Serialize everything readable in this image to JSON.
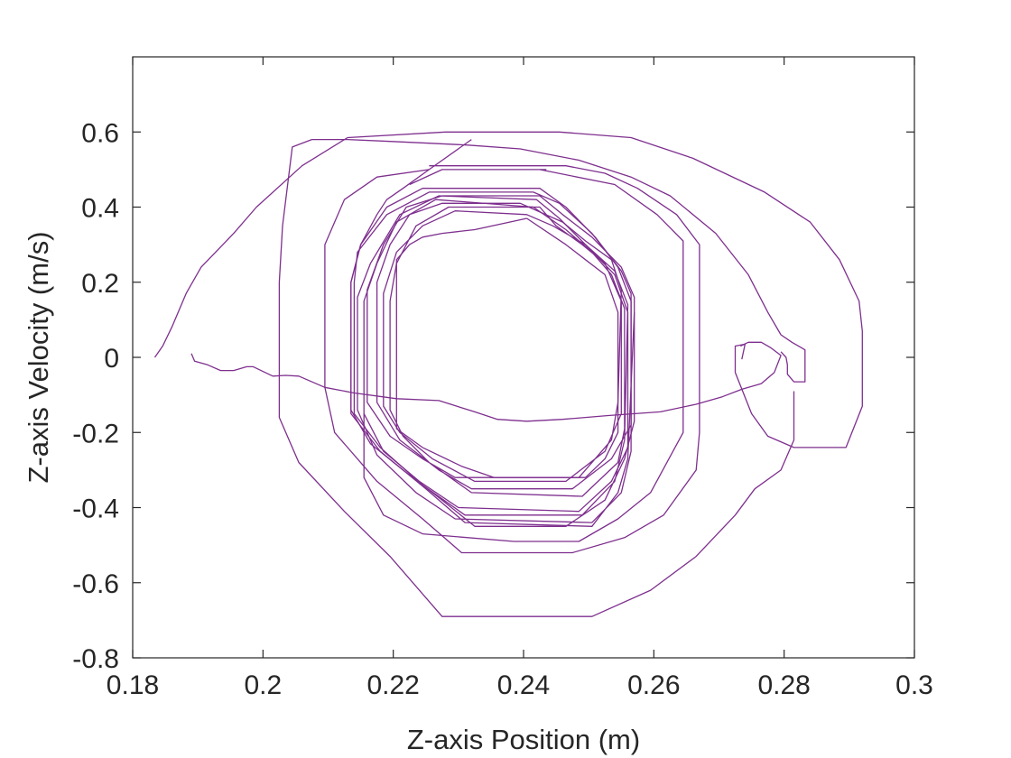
{
  "chart_data": {
    "type": "line",
    "title": "",
    "xlabel": "Z-axis Position (m)",
    "ylabel": "Z-axis Velocity (m/s)",
    "xlim": [
      0.18,
      0.3
    ],
    "ylim": [
      -0.8,
      0.8
    ],
    "x_ticks": [
      "0.18",
      "0.2",
      "0.22",
      "0.24",
      "0.26",
      "0.28",
      "0.3"
    ],
    "y_ticks": [
      "-0.8",
      "-0.6",
      "-0.4",
      "-0.2",
      "0",
      "0.2",
      "0.4",
      "0.6"
    ],
    "grid": false,
    "legend": "none",
    "series": [
      {
        "color": "#7E2F8E",
        "points": [
          [
            0.1834,
            0.0
          ],
          [
            0.1846,
            0.03
          ],
          [
            0.186,
            0.08
          ],
          [
            0.1882,
            0.17
          ],
          [
            0.1905,
            0.24
          ],
          [
            0.1955,
            0.33
          ],
          [
            0.199,
            0.4
          ],
          [
            0.206,
            0.51
          ],
          [
            0.213,
            0.585
          ],
          [
            0.228,
            0.6
          ],
          [
            0.2455,
            0.6
          ],
          [
            0.2565,
            0.585
          ],
          [
            0.266,
            0.53
          ],
          [
            0.277,
            0.44
          ],
          [
            0.284,
            0.36
          ],
          [
            0.2885,
            0.26
          ],
          [
            0.2915,
            0.15
          ],
          [
            0.292,
            0.07
          ],
          [
            0.292,
            -0.13
          ],
          [
            0.2895,
            -0.24
          ],
          [
            0.2815,
            -0.24
          ],
          [
            0.2775,
            -0.21
          ],
          [
            0.275,
            -0.15
          ],
          [
            0.2725,
            -0.04
          ],
          [
            0.2725,
            0.03
          ],
          [
            0.274,
            0.035
          ],
          [
            0.2735,
            -0.005
          ]
        ]
      },
      {
        "color": "#7E2F8E",
        "points": [
          [
            0.2733,
            0.03
          ],
          [
            0.2745,
            0.04
          ],
          [
            0.2765,
            0.04
          ],
          [
            0.278,
            0.025
          ],
          [
            0.2795,
            0.005
          ],
          [
            0.2785,
            -0.04
          ],
          [
            0.2765,
            -0.07
          ],
          [
            0.2735,
            -0.085
          ],
          [
            0.2705,
            -0.105
          ],
          [
            0.2665,
            -0.125
          ],
          [
            0.261,
            -0.145
          ],
          [
            0.253,
            -0.155
          ],
          [
            0.246,
            -0.165
          ],
          [
            0.2405,
            -0.17
          ],
          [
            0.236,
            -0.165
          ],
          [
            0.2325,
            -0.145
          ],
          [
            0.227,
            -0.115
          ],
          [
            0.2205,
            -0.11
          ],
          [
            0.214,
            -0.095
          ],
          [
            0.2095,
            -0.08
          ],
          [
            0.2055,
            -0.05
          ],
          [
            0.2035,
            -0.048
          ],
          [
            0.2015,
            -0.05
          ],
          [
            0.1985,
            -0.025
          ],
          [
            0.1975,
            -0.025
          ],
          [
            0.1955,
            -0.035
          ],
          [
            0.1935,
            -0.035
          ],
          [
            0.1915,
            -0.02
          ],
          [
            0.1895,
            -0.01
          ],
          [
            0.189,
            0.01
          ]
        ]
      },
      {
        "color": "#7E2F8E",
        "points": [
          [
            0.2795,
            0.015
          ],
          [
            0.2803,
            0.0
          ],
          [
            0.2805,
            -0.02
          ],
          [
            0.2805,
            -0.045
          ],
          [
            0.2815,
            -0.065
          ],
          [
            0.2832,
            -0.065
          ],
          [
            0.2832,
            0.02
          ],
          [
            0.2812,
            0.04
          ],
          [
            0.2795,
            0.06
          ],
          [
            0.2775,
            0.12
          ],
          [
            0.2745,
            0.22
          ],
          [
            0.2695,
            0.33
          ],
          [
            0.2625,
            0.43
          ],
          [
            0.2565,
            0.48
          ],
          [
            0.2485,
            0.525
          ],
          [
            0.2395,
            0.555
          ],
          [
            0.2315,
            0.565
          ],
          [
            0.2255,
            0.57
          ],
          [
            0.2195,
            0.575
          ],
          [
            0.213,
            0.58
          ],
          [
            0.2075,
            0.58
          ],
          [
            0.2045,
            0.56
          ],
          [
            0.203,
            0.35
          ],
          [
            0.2025,
            0.2
          ],
          [
            0.2025,
            -0.16
          ],
          [
            0.2055,
            -0.28
          ],
          [
            0.2125,
            -0.41
          ],
          [
            0.2195,
            -0.53
          ],
          [
            0.2275,
            -0.69
          ],
          [
            0.2505,
            -0.69
          ],
          [
            0.2595,
            -0.62
          ],
          [
            0.2665,
            -0.53
          ],
          [
            0.2725,
            -0.42
          ],
          [
            0.2755,
            -0.35
          ],
          [
            0.2795,
            -0.3
          ],
          [
            0.2815,
            -0.22
          ],
          [
            0.2815,
            -0.09
          ]
        ]
      },
      {
        "color": "#7E2F8E",
        "points": [
          [
            0.232,
            0.58
          ],
          [
            0.2255,
            0.5
          ],
          [
            0.2215,
            0.45
          ],
          [
            0.219,
            0.42
          ],
          [
            0.2175,
            0.38
          ],
          [
            0.215,
            0.3
          ],
          [
            0.2135,
            0.2
          ],
          [
            0.2135,
            -0.14
          ],
          [
            0.2165,
            -0.23
          ],
          [
            0.2215,
            -0.3
          ],
          [
            0.2275,
            -0.38
          ],
          [
            0.2325,
            -0.45
          ],
          [
            0.2465,
            -0.45
          ],
          [
            0.2525,
            -0.38
          ],
          [
            0.2555,
            -0.27
          ],
          [
            0.257,
            -0.17
          ],
          [
            0.257,
            0.16
          ],
          [
            0.255,
            0.24
          ],
          [
            0.2505,
            0.32
          ],
          [
            0.246,
            0.38
          ],
          [
            0.2425,
            0.43
          ],
          [
            0.2275,
            0.43
          ],
          [
            0.222,
            0.4
          ],
          [
            0.2185,
            0.3
          ],
          [
            0.216,
            0.18
          ],
          [
            0.216,
            -0.12
          ],
          [
            0.2195,
            -0.21
          ],
          [
            0.2245,
            -0.27
          ],
          [
            0.2295,
            -0.32
          ],
          [
            0.2485,
            -0.32
          ],
          [
            0.2535,
            -0.22
          ],
          [
            0.2545,
            -0.12
          ],
          [
            0.255,
            0.18
          ],
          [
            0.2535,
            0.26
          ],
          [
            0.2495,
            0.31
          ],
          [
            0.246,
            0.36
          ],
          [
            0.2395,
            0.41
          ],
          [
            0.2275,
            0.41
          ],
          [
            0.2225,
            0.38
          ],
          [
            0.2195,
            0.3
          ],
          [
            0.2175,
            0.2
          ],
          [
            0.2175,
            -0.12
          ],
          [
            0.221,
            -0.22
          ],
          [
            0.227,
            -0.3
          ],
          [
            0.232,
            -0.35
          ],
          [
            0.2475,
            -0.35
          ],
          [
            0.2535,
            -0.27
          ],
          [
            0.2565,
            -0.18
          ],
          [
            0.2565,
            0.15
          ],
          [
            0.2545,
            0.24
          ],
          [
            0.2505,
            0.33
          ],
          [
            0.2455,
            0.41
          ],
          [
            0.2415,
            0.44
          ],
          [
            0.2255,
            0.44
          ],
          [
            0.219,
            0.38
          ],
          [
            0.2145,
            0.28
          ],
          [
            0.214,
            0.2
          ],
          [
            0.214,
            -0.15
          ],
          [
            0.218,
            -0.24
          ],
          [
            0.2245,
            -0.34
          ],
          [
            0.231,
            -0.42
          ],
          [
            0.249,
            -0.42
          ],
          [
            0.254,
            -0.33
          ],
          [
            0.2555,
            -0.22
          ],
          [
            0.256,
            0.14
          ],
          [
            0.254,
            0.23
          ],
          [
            0.2495,
            0.3
          ],
          [
            0.2445,
            0.35
          ],
          [
            0.2405,
            0.38
          ],
          [
            0.2295,
            0.39
          ],
          [
            0.2245,
            0.35
          ],
          [
            0.2205,
            0.28
          ],
          [
            0.2185,
            0.17
          ],
          [
            0.2185,
            -0.13
          ],
          [
            0.221,
            -0.2
          ],
          [
            0.226,
            -0.27
          ],
          [
            0.2325,
            -0.33
          ],
          [
            0.2465,
            -0.33
          ],
          [
            0.2525,
            -0.25
          ],
          [
            0.255,
            -0.15
          ],
          [
            0.255,
            0.15
          ],
          [
            0.2525,
            0.25
          ],
          [
            0.249,
            0.3
          ],
          [
            0.245,
            0.35
          ],
          [
            0.2425,
            0.4
          ],
          [
            0.2285,
            0.4
          ],
          [
            0.2235,
            0.35
          ],
          [
            0.2205,
            0.25
          ],
          [
            0.2195,
            0.15
          ],
          [
            0.2195,
            -0.14
          ],
          [
            0.2215,
            -0.21
          ],
          [
            0.2255,
            -0.28
          ],
          [
            0.232,
            -0.36
          ],
          [
            0.249,
            -0.37
          ],
          [
            0.2545,
            -0.28
          ],
          [
            0.2555,
            -0.19
          ],
          [
            0.2555,
            0.13
          ],
          [
            0.2535,
            0.22
          ],
          [
            0.2505,
            0.28
          ],
          [
            0.2465,
            0.34
          ]
        ]
      },
      {
        "color": "#7E2F8E",
        "points": [
          [
            0.2465,
            0.34
          ],
          [
            0.2415,
            0.4
          ],
          [
            0.2265,
            0.42
          ],
          [
            0.2205,
            0.36
          ],
          [
            0.2175,
            0.25
          ],
          [
            0.2155,
            0.15
          ],
          [
            0.2155,
            -0.15
          ],
          [
            0.2185,
            -0.25
          ],
          [
            0.224,
            -0.33
          ],
          [
            0.23,
            -0.4
          ],
          [
            0.2485,
            -0.41
          ],
          [
            0.2535,
            -0.33
          ],
          [
            0.256,
            -0.24
          ],
          [
            0.256,
            0.12
          ],
          [
            0.254,
            0.22
          ],
          [
            0.2495,
            0.3
          ],
          [
            0.2455,
            0.37
          ],
          [
            0.242,
            0.42
          ],
          [
            0.227,
            0.43
          ],
          [
            0.221,
            0.38
          ],
          [
            0.2165,
            0.25
          ],
          [
            0.2145,
            0.16
          ],
          [
            0.2145,
            -0.14
          ],
          [
            0.2175,
            -0.26
          ],
          [
            0.2235,
            -0.36
          ],
          [
            0.2295,
            -0.43
          ],
          [
            0.2505,
            -0.44
          ],
          [
            0.255,
            -0.36
          ],
          [
            0.2565,
            -0.25
          ],
          [
            0.2565,
            0.17
          ],
          [
            0.255,
            0.23
          ],
          [
            0.251,
            0.32
          ],
          [
            0.2465,
            0.4
          ],
          [
            0.2425,
            0.45
          ],
          [
            0.2245,
            0.45
          ],
          [
            0.219,
            0.4
          ],
          [
            0.215,
            0.3
          ],
          [
            0.2135,
            0.2
          ],
          [
            0.2135,
            -0.15
          ],
          [
            0.218,
            -0.25
          ],
          [
            0.225,
            -0.35
          ],
          [
            0.231,
            -0.44
          ],
          [
            0.2505,
            -0.45
          ],
          [
            0.2545,
            -0.36
          ],
          [
            0.256,
            -0.27
          ],
          [
            0.257,
            0.12
          ]
        ]
      },
      {
        "color": "#7E2F8E",
        "points": [
          [
            0.2405,
            0.37
          ],
          [
            0.2325,
            0.34
          ],
          [
            0.2275,
            0.33
          ],
          [
            0.2245,
            0.32
          ],
          [
            0.2225,
            0.3
          ],
          [
            0.2205,
            0.26
          ],
          [
            0.2205,
            -0.19
          ],
          [
            0.2245,
            -0.24
          ],
          [
            0.2305,
            -0.29
          ],
          [
            0.2355,
            -0.32
          ],
          [
            0.2495,
            -0.32
          ],
          [
            0.2525,
            -0.27
          ],
          [
            0.2545,
            -0.2
          ],
          [
            0.2545,
            0.12
          ],
          [
            0.2525,
            0.22
          ],
          [
            0.2495,
            0.26
          ],
          [
            0.2465,
            0.3
          ],
          [
            0.2405,
            0.37
          ]
        ]
      },
      {
        "color": "#7E2F8E",
        "points": [
          [
            0.2425,
            0.5
          ],
          [
            0.254,
            0.46
          ],
          [
            0.2605,
            0.38
          ],
          [
            0.2645,
            0.31
          ],
          [
            0.2645,
            -0.2
          ],
          [
            0.2595,
            -0.36
          ],
          [
            0.2545,
            -0.43
          ],
          [
            0.2485,
            -0.49
          ],
          [
            0.2385,
            -0.49
          ],
          [
            0.2245,
            -0.47
          ],
          [
            0.2185,
            -0.42
          ],
          [
            0.2155,
            -0.32
          ],
          [
            0.2155,
            -0.15
          ]
        ]
      },
      {
        "color": "#7E2F8E",
        "points": [
          [
            0.2225,
            0.46
          ],
          [
            0.2275,
            0.5
          ],
          [
            0.2435,
            0.5
          ]
        ]
      },
      {
        "color": "#7E2F8E",
        "points": [
          [
            0.2255,
            0.5
          ],
          [
            0.2175,
            0.48
          ],
          [
            0.2125,
            0.42
          ],
          [
            0.2095,
            0.3
          ],
          [
            0.2095,
            -0.08
          ],
          [
            0.211,
            -0.2
          ],
          [
            0.2175,
            -0.33
          ],
          [
            0.2245,
            -0.43
          ],
          [
            0.2305,
            -0.52
          ],
          [
            0.2475,
            -0.52
          ],
          [
            0.2555,
            -0.48
          ],
          [
            0.2615,
            -0.42
          ],
          [
            0.2665,
            -0.3
          ],
          [
            0.267,
            -0.2
          ],
          [
            0.267,
            0.3
          ],
          [
            0.2635,
            0.38
          ],
          [
            0.2575,
            0.45
          ],
          [
            0.2525,
            0.49
          ],
          [
            0.2465,
            0.51
          ],
          [
            0.2255,
            0.51
          ]
        ]
      }
    ]
  }
}
